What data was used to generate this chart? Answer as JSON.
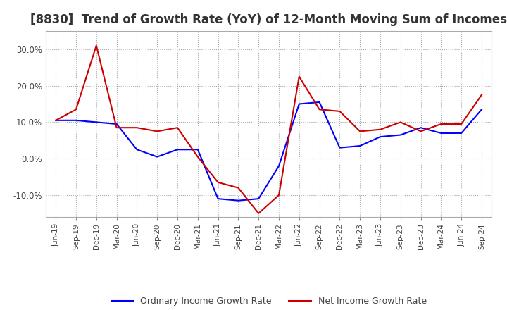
{
  "title": "[8830]  Trend of Growth Rate (YoY) of 12-Month Moving Sum of Incomes",
  "title_fontsize": 12,
  "ylim": [
    -16,
    35
  ],
  "yticks": [
    -10,
    0,
    10,
    20,
    30
  ],
  "background_color": "#ffffff",
  "plot_bg_color": "#ffffff",
  "grid_color": "#aaaaaa",
  "legend_labels": [
    "Ordinary Income Growth Rate",
    "Net Income Growth Rate"
  ],
  "line_colors": [
    "#0000ff",
    "#cc0000"
  ],
  "x_labels": [
    "Jun-19",
    "Sep-19",
    "Dec-19",
    "Mar-20",
    "Jun-20",
    "Sep-20",
    "Dec-20",
    "Mar-21",
    "Jun-21",
    "Sep-21",
    "Dec-21",
    "Mar-22",
    "Jun-22",
    "Sep-22",
    "Dec-22",
    "Mar-23",
    "Jun-23",
    "Sep-23",
    "Dec-23",
    "Mar-24",
    "Jun-24",
    "Sep-24"
  ],
  "ordinary_income": [
    10.5,
    10.5,
    10.0,
    9.5,
    2.5,
    0.5,
    2.5,
    2.5,
    -11.0,
    -11.5,
    -11.0,
    -2.0,
    15.0,
    15.5,
    3.0,
    3.5,
    6.0,
    6.5,
    8.5,
    7.0,
    7.0,
    13.5
  ],
  "net_income": [
    10.5,
    13.5,
    31.0,
    8.5,
    8.5,
    7.5,
    8.5,
    0.5,
    -6.5,
    -8.0,
    -15.0,
    -10.0,
    22.5,
    13.5,
    13.0,
    7.5,
    8.0,
    10.0,
    7.5,
    9.5,
    9.5,
    17.5
  ]
}
